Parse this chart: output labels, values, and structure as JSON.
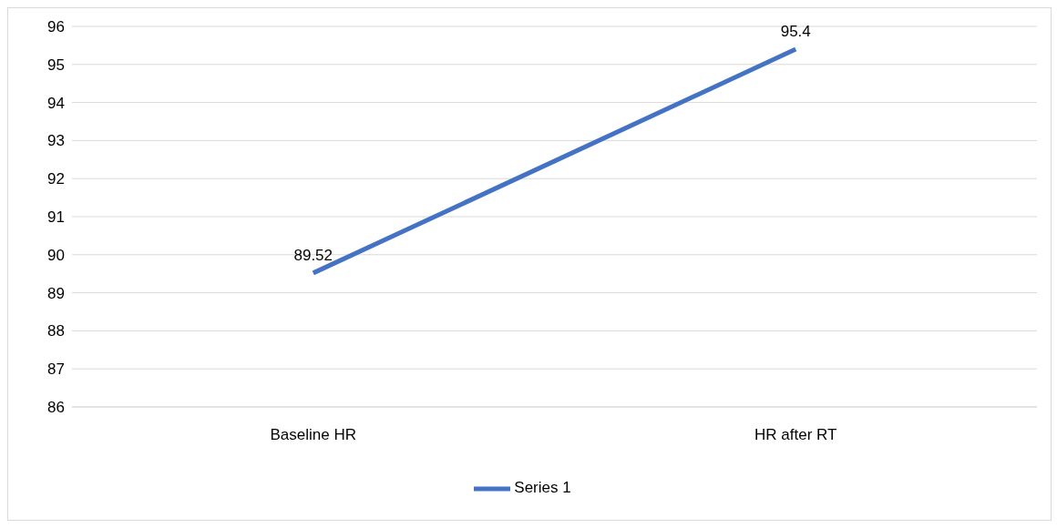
{
  "chart_data": {
    "type": "line",
    "categories": [
      "Baseline HR",
      "HR after RT"
    ],
    "series": [
      {
        "name": "Series 1",
        "color": "#4472c4",
        "values": [
          89.52,
          95.4
        ]
      }
    ],
    "ylim": [
      86,
      96
    ],
    "yticks": [
      86,
      87,
      88,
      89,
      90,
      91,
      92,
      93,
      94,
      95,
      96
    ],
    "grid": "y",
    "legend": "bottom",
    "marker": "none",
    "line_style": "solid",
    "data_labels": true
  }
}
